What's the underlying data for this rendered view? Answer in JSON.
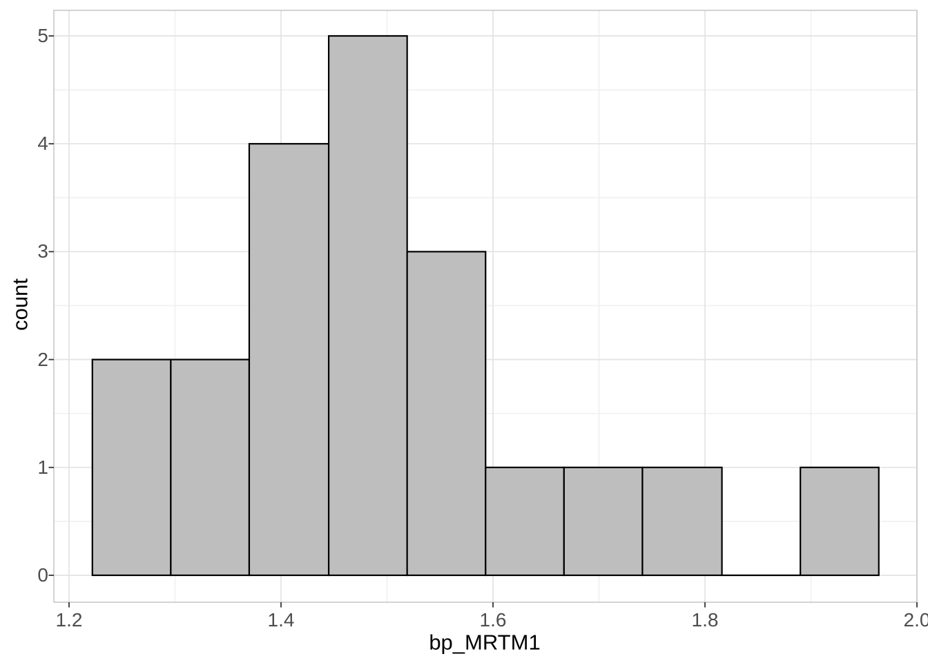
{
  "chart_data": {
    "type": "histogram",
    "title": "",
    "xlabel": "bp_MRTM1",
    "ylabel": "count",
    "n_bins": 10,
    "binwidth": 0.0742,
    "bin_edges": [
      1.222,
      1.296,
      1.37,
      1.445,
      1.519,
      1.593,
      1.667,
      1.741,
      1.816,
      1.89,
      1.964
    ],
    "counts": [
      2,
      2,
      4,
      5,
      3,
      1,
      1,
      1,
      0,
      1
    ],
    "xlim": [
      1.186,
      2.0
    ],
    "ylim": [
      -0.25,
      5.245
    ],
    "grid": "on",
    "legend": "none",
    "x_ticks": [
      {
        "value": 1.2,
        "label": "1.2"
      },
      {
        "value": 1.4,
        "label": "1.4"
      },
      {
        "value": 1.6,
        "label": "1.6"
      },
      {
        "value": 1.8,
        "label": "1.8"
      },
      {
        "value": 2.0,
        "label": "2.0"
      }
    ],
    "y_ticks": [
      {
        "value": 0,
        "label": "0"
      },
      {
        "value": 1,
        "label": "1"
      },
      {
        "value": 2,
        "label": "2"
      },
      {
        "value": 3,
        "label": "3"
      },
      {
        "value": 4,
        "label": "4"
      },
      {
        "value": 5,
        "label": "5"
      }
    ],
    "x_minor_gridlines": [
      1.3,
      1.5,
      1.7,
      1.9
    ],
    "y_minor_gridlines": [
      0.5,
      1.5,
      2.5,
      3.5,
      4.5
    ],
    "colors": {
      "bar_fill": "#BEBEBE",
      "bar_stroke": "#000000",
      "grid_major": "#E3E3E3",
      "grid_minor": "#F0F0F0",
      "panel_border": "#C8C8C8",
      "tick_mark": "#333333",
      "tick_label": "#4D4D4D",
      "axis_title": "#000000",
      "background": "#FFFFFF"
    }
  }
}
